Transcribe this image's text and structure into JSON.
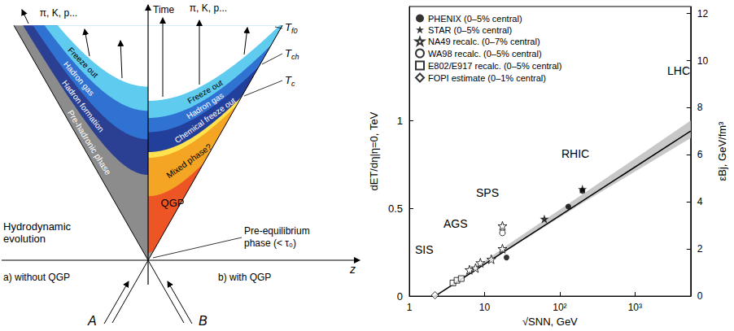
{
  "diagram": {
    "time_axis": "Time",
    "z_axis": "z",
    "left": {
      "caption": "a) without QGP",
      "nucleus": "A",
      "products": "π, K, p...",
      "note": "Hydrodynamic evolution",
      "bands": [
        {
          "label": "Pre-hadronic phase",
          "color": "#8c8c8c"
        },
        {
          "label": "Hadron formation",
          "color": "#2b3f93"
        },
        {
          "label": "Hadron gas",
          "color": "#2f72d2"
        },
        {
          "label": "Freeze out",
          "color": "#5fcbef"
        }
      ]
    },
    "right": {
      "caption": "b) with QGP",
      "nucleus": "B",
      "products": "π, K, p...",
      "note": "Pre-equilibrium phase (< τ₀)",
      "bands": [
        {
          "label": null,
          "color": "#a0a0a0"
        },
        {
          "label": "QGP",
          "color": "#ee5524"
        },
        {
          "label": "Mixed phase?",
          "color": "#f5a524"
        },
        {
          "label": null,
          "color": "#ffe24d"
        },
        {
          "label": "Chemical freeze out",
          "color": "#233f9c"
        },
        {
          "label": "Hadron gas",
          "color": "#2f72d2"
        },
        {
          "label": "Freeze out",
          "color": "#5fcbef"
        }
      ],
      "temperatures": [
        "Tf0",
        "Tch",
        "Tc"
      ]
    }
  },
  "chart_data": {
    "type": "scatter",
    "x_label": "√SNN, GeV",
    "y_label": "dET/dη|η=0, TeV",
    "y2_label": "εBj, GeV/fm³",
    "log": "x",
    "grid": false,
    "legend": "upper left",
    "xlim": [
      1,
      5500
    ],
    "xticks": [
      1,
      10,
      {
        "value": 100,
        "label": "10²"
      },
      {
        "value": 1000,
        "label": "10³"
      }
    ],
    "ylim": [
      0,
      1.65
    ],
    "yticks": [
      0,
      0.5,
      1
    ],
    "y2lim": [
      0,
      12.3
    ],
    "y2ticks": [
      0,
      2,
      4,
      6,
      8,
      10,
      12
    ],
    "annotations": [
      "SIS",
      "AGS",
      "SPS",
      "RHIC",
      "LHC"
    ],
    "series": [
      {
        "name": "PHENIX (0–5% central)",
        "marker": "circle",
        "color": "#000000",
        "x": [
          19.6,
          130,
          200
        ],
        "values": [
          0.22,
          0.51,
          0.6
        ]
      },
      {
        "name": "STAR (0–5% central)",
        "marker": "star",
        "color": "#000000",
        "x": [
          62.4,
          200
        ],
        "values": [
          0.44,
          0.61
        ]
      },
      {
        "name": "NA49 recalc. (0–7% central)",
        "marker": "open_star",
        "color": "#000000",
        "x": [
          6.3,
          7.6,
          8.8,
          12.3,
          17.3,
          17.3
        ],
        "values": [
          0.15,
          0.16,
          0.19,
          0.21,
          0.27,
          0.4
        ]
      },
      {
        "name": "WA98 recalc. (0–5% central)",
        "marker": "open_circle",
        "color": "#000000",
        "x": [
          17.3
        ],
        "values": [
          0.36
        ]
      },
      {
        "name": "E802/E917 recalc. (0–5% central)",
        "marker": "open_square",
        "color": "#000000",
        "x": [
          3.8,
          4.3,
          4.9
        ],
        "values": [
          0.075,
          0.09,
          0.1
        ]
      },
      {
        "name": "FOPI estimate (0–1% central)",
        "marker": "open_diamond",
        "color": "#000000",
        "x": [
          2.2
        ],
        "values": [
          0.005
        ]
      },
      {
        "type": "line",
        "line_style": "solid",
        "color": "#000000",
        "x": [
          2.2,
          5500
        ],
        "values": [
          0,
          0.94
        ]
      }
    ],
    "band": {
      "color": "#c8c8c8",
      "x": [
        2.2,
        20,
        200,
        5500
      ],
      "lower": [
        0,
        0.26,
        0.53,
        0.9
      ],
      "upper": [
        0,
        0.29,
        0.58,
        1.0
      ]
    }
  }
}
